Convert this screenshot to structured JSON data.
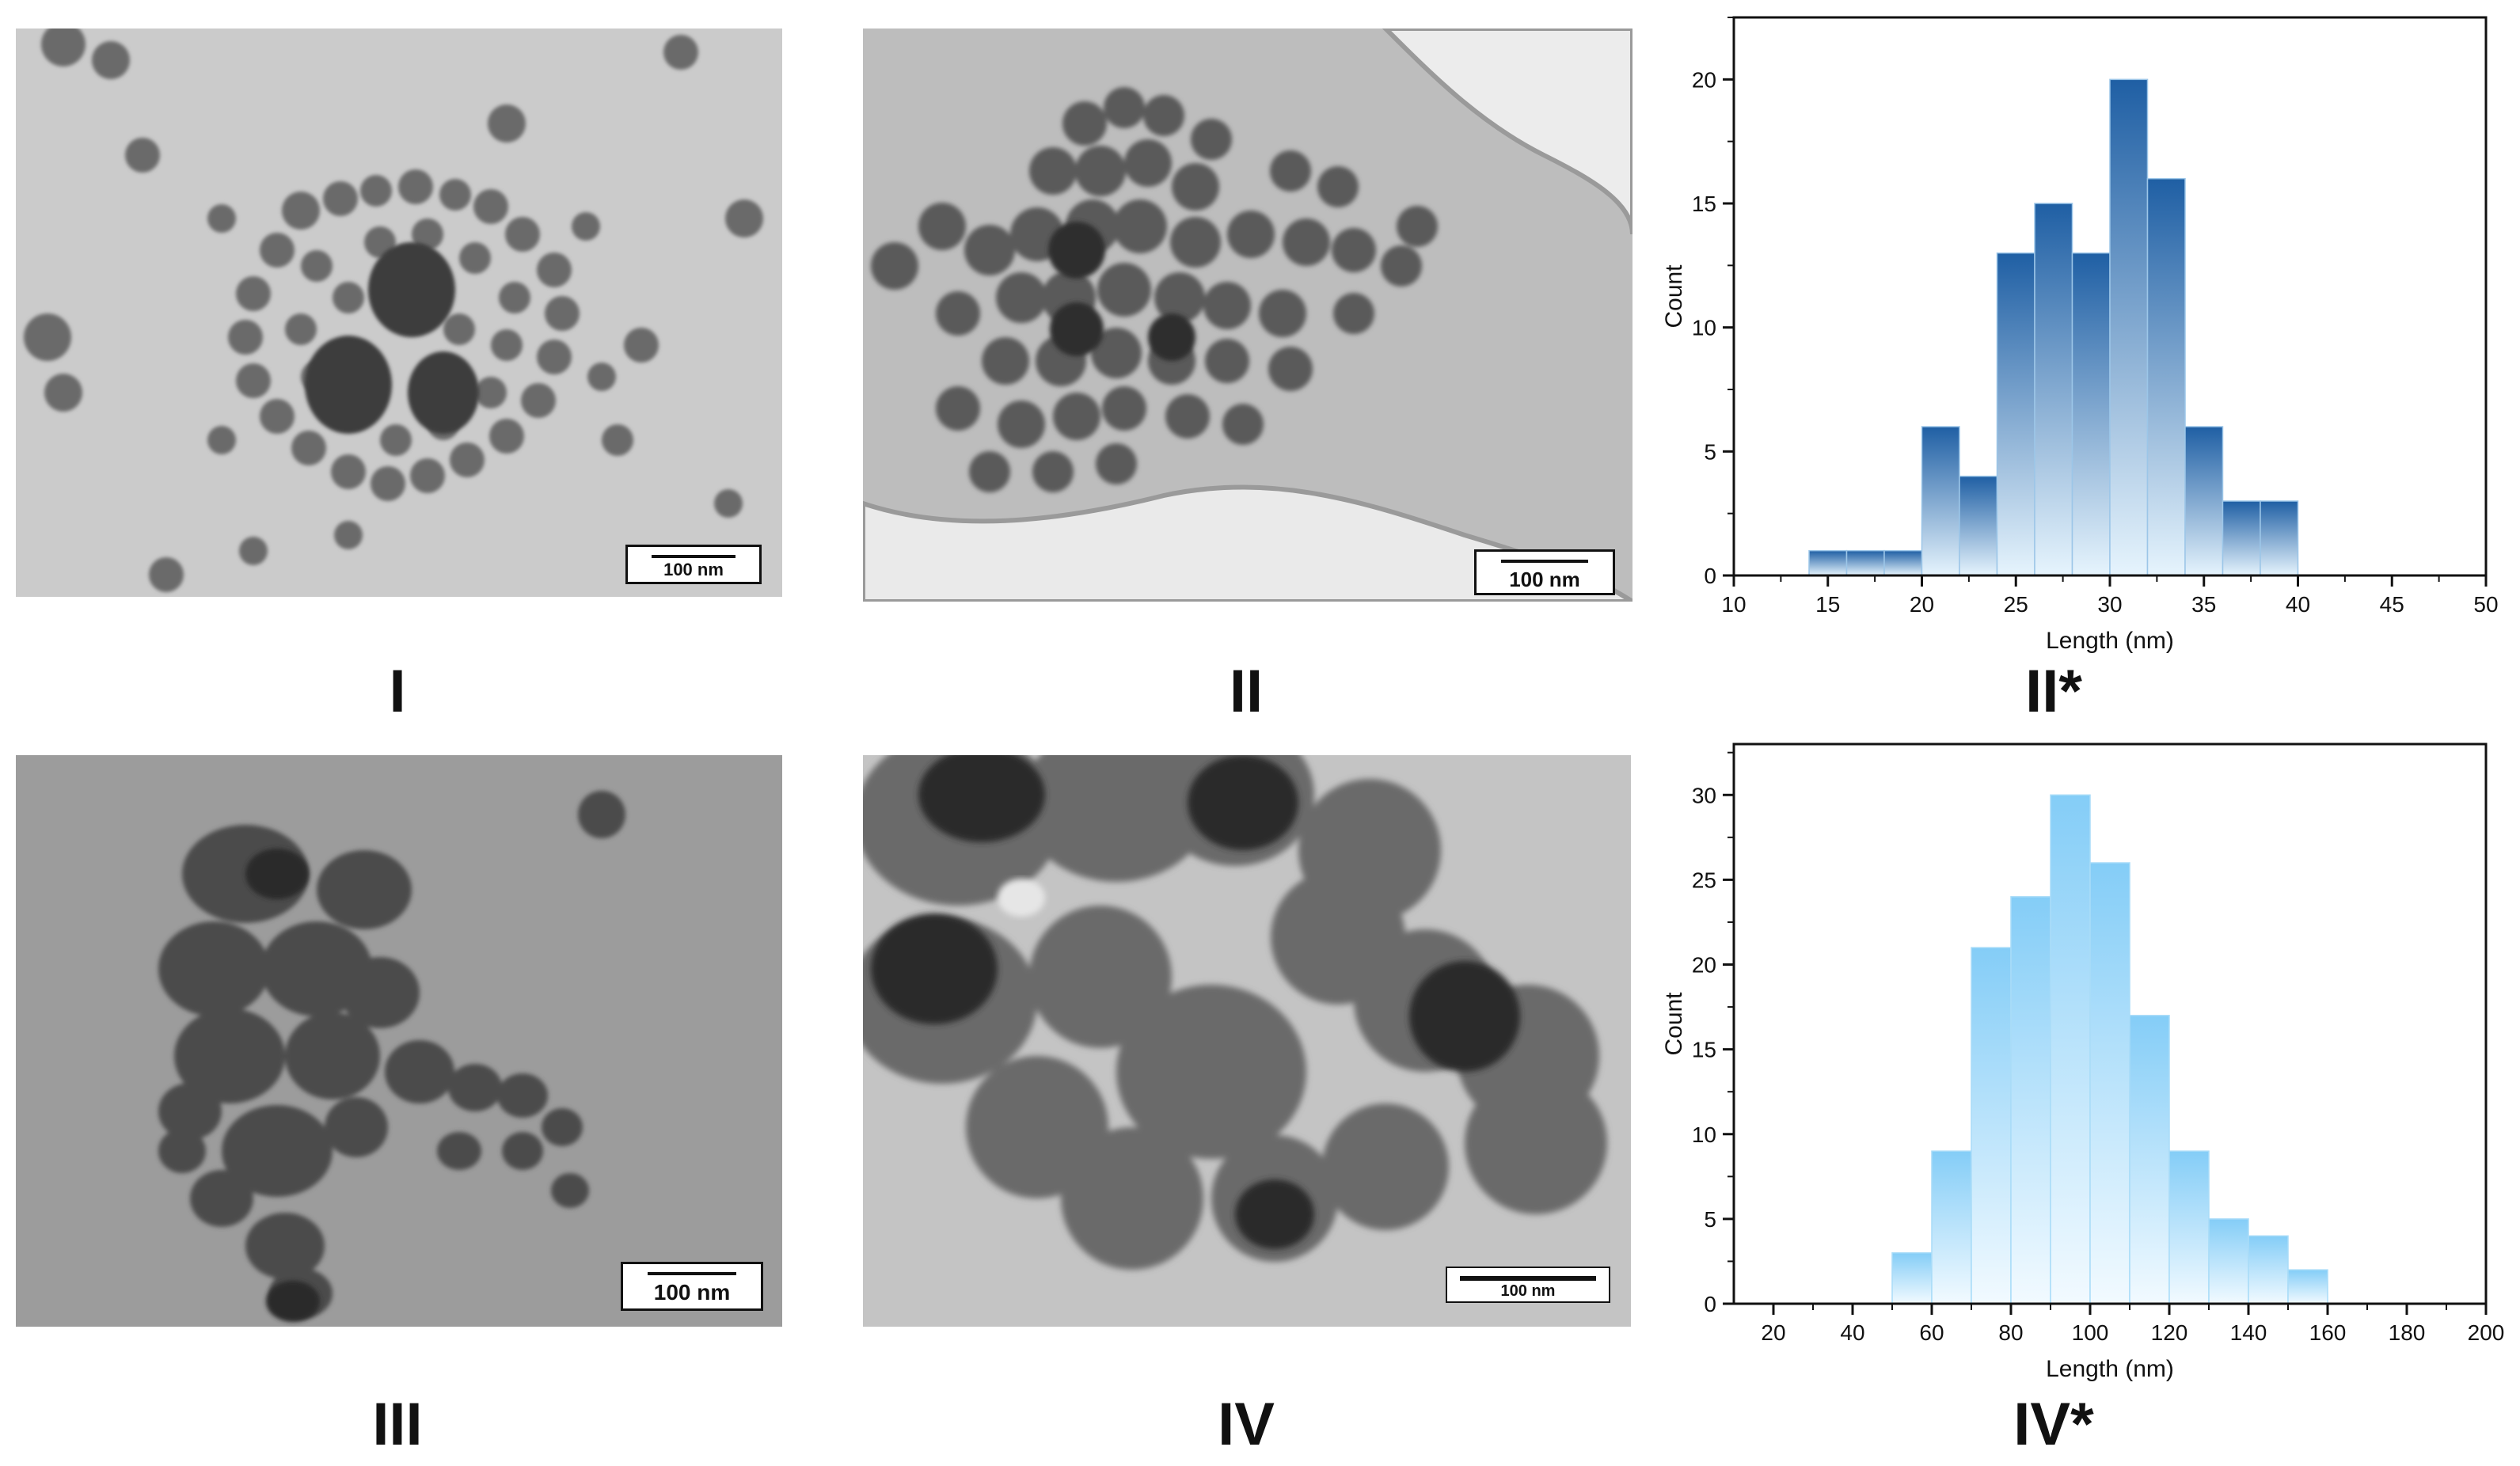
{
  "panels": {
    "I": {
      "label": "I",
      "scale": "100 nm"
    },
    "II": {
      "label": "II",
      "scale": "100 nm"
    },
    "II_star": {
      "label": "II*"
    },
    "III": {
      "label": "III",
      "scale": "100 nm"
    },
    "IV": {
      "label": "IV",
      "scale": "100 nm"
    },
    "IV_star": {
      "label": "IV*"
    }
  },
  "chart_data": [
    {
      "id": "II*",
      "type": "bar",
      "xlabel": "Length (nm)",
      "ylabel": "Count",
      "xlim": [
        10,
        50
      ],
      "ylim": [
        0,
        22.5
      ],
      "xticks": [
        10,
        15,
        20,
        25,
        30,
        35,
        40,
        45,
        50
      ],
      "yticks": [
        0,
        5,
        10,
        15,
        20
      ],
      "bin_width": 2,
      "bin_starts": [
        14,
        16,
        18,
        20,
        22,
        24,
        26,
        28,
        30,
        32,
        34,
        36,
        38
      ],
      "values": [
        1,
        1,
        1,
        6,
        4,
        13,
        15,
        13,
        20,
        16,
        6,
        3,
        3
      ],
      "fill_top": "#1f5fa4",
      "fill_bottom": "#e6f4fd",
      "grid": false
    },
    {
      "id": "IV*",
      "type": "bar",
      "xlabel": "Length (nm)",
      "ylabel": "Count",
      "xlim": [
        10,
        200
      ],
      "ylim": [
        0,
        33
      ],
      "xticks": [
        20,
        40,
        60,
        80,
        100,
        120,
        140,
        160,
        180,
        200
      ],
      "yticks": [
        0,
        5,
        10,
        15,
        20,
        25,
        30
      ],
      "bin_width": 10,
      "bin_starts": [
        50,
        60,
        70,
        80,
        90,
        100,
        110,
        120,
        130,
        140,
        150
      ],
      "values": [
        3,
        9,
        21,
        24,
        30,
        26,
        17,
        9,
        5,
        4,
        2
      ],
      "fill_top": "#84cdf7",
      "fill_bottom": "#f2faff",
      "grid": false
    }
  ]
}
